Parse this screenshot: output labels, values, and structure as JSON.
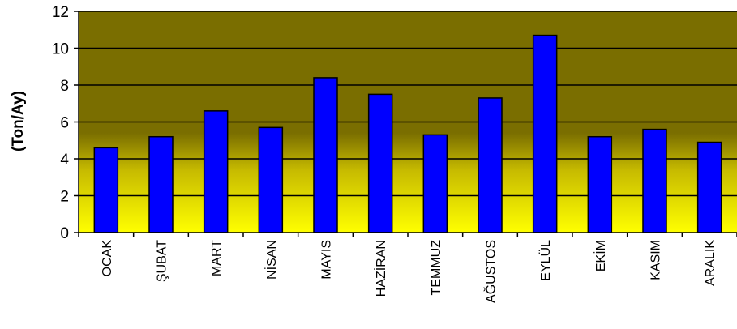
{
  "chart_data": {
    "type": "bar",
    "title": "",
    "xlabel": "",
    "ylabel": "(Ton/Ay)",
    "categories": [
      "OCAK",
      "ŞUBAT",
      "MART",
      "NİSAN",
      "MAYIS",
      "HAZİRAN",
      "TEMMUZ",
      "AĞUSTOS",
      "EYLÜL",
      "EKİM",
      "KASIM",
      "ARALIK"
    ],
    "values": [
      4.6,
      5.2,
      6.6,
      5.7,
      8.4,
      7.5,
      5.3,
      7.3,
      10.7,
      5.2,
      5.6,
      4.9
    ],
    "ylim": [
      0,
      12
    ],
    "yticks": [
      0,
      2,
      4,
      6,
      8,
      10,
      12
    ],
    "grid": true,
    "legend": "none",
    "colors": {
      "bar_fill": "#0000FF",
      "bar_stroke": "#000000",
      "plot_bg_top": "#7a6e00",
      "plot_bg_bottom": "#ffff00",
      "gridline": "#000000"
    }
  }
}
